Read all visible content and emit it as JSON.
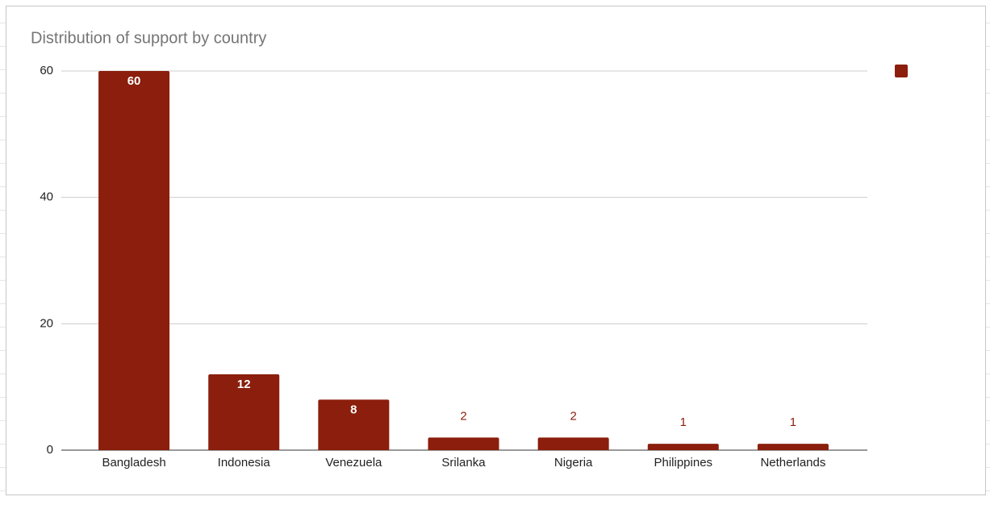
{
  "chart_data": {
    "type": "bar",
    "title": "Distribution of support by country",
    "categories": [
      "Bangladesh",
      "Indonesia",
      "Venezuela",
      "Srilanka",
      "Nigeria",
      "Philippines",
      "Netherlands"
    ],
    "values": [
      60,
      12,
      8,
      2,
      2,
      1,
      1
    ],
    "color": "#8b1e0c",
    "ylim": [
      0,
      60
    ],
    "yticks": [
      0,
      20,
      40,
      60
    ],
    "grid": true,
    "legend": "right"
  }
}
